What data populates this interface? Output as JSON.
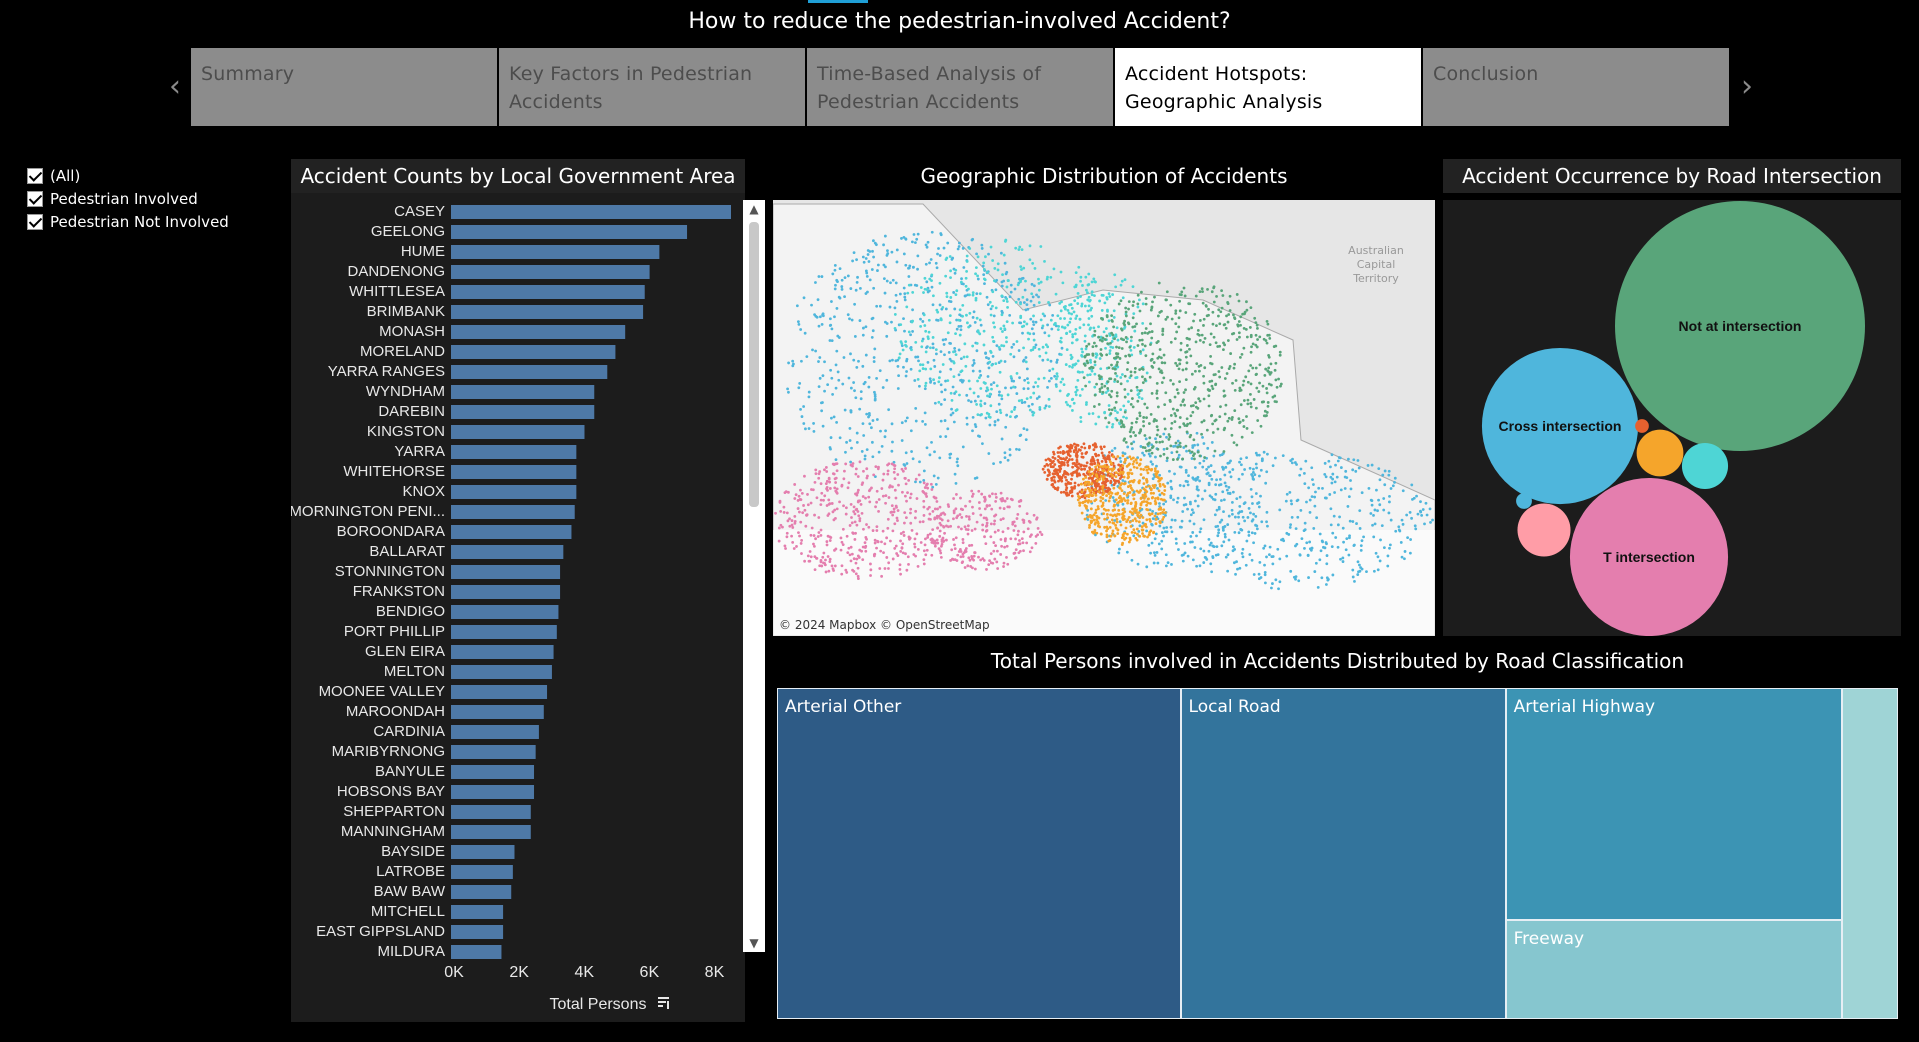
{
  "story": {
    "title": "How to reduce the pedestrian-involved Accident?",
    "tabs": [
      {
        "line1": "Summary",
        "line2": ""
      },
      {
        "line1": "Key Factors in Pedestrian",
        "line2": "Accidents"
      },
      {
        "line1": "Time-Based Analysis of",
        "line2": "Pedestrian Accidents"
      },
      {
        "line1": "Accident Hotspots:",
        "line2": "Geographic Analysis"
      },
      {
        "line1": "Conclusion",
        "line2": ""
      }
    ],
    "active_tab": 3,
    "prev_icon": "chevron-left-icon",
    "next_icon": "chevron-right-icon"
  },
  "filter": {
    "items": [
      {
        "label": "(All)",
        "checked": true
      },
      {
        "label": "Pedestrian Involved",
        "checked": true
      },
      {
        "label": "Pedestrian Not Involved",
        "checked": true
      }
    ]
  },
  "colors": {
    "bar": "#4e79a7",
    "panel_bg": "#1c1c1c",
    "region1": "#4fb6dc",
    "region2": "#59a57a",
    "region3": "#4ed5d5",
    "region4": "#e47eae",
    "region5": "#e6612f",
    "region6": "#f5a52b"
  },
  "map": {
    "title": "Geographic Distribution of Accidents",
    "credit": "© 2024 Mapbox © OpenStreetMap",
    "place_label": "Australian Capital Territory"
  },
  "chart_data": [
    {
      "type": "bar",
      "orientation": "horizontal",
      "title": "Accident Counts by Local Government Area",
      "xlabel": "Total Persons",
      "xlim": [
        0,
        8600
      ],
      "xticks": [
        "0K",
        "2K",
        "4K",
        "6K",
        "8K"
      ],
      "xtick_values": [
        0,
        2000,
        4000,
        6000,
        8000
      ],
      "categories": [
        "CASEY",
        "GEELONG",
        "HUME",
        "DANDENONG",
        "WHITTLESEA",
        "BRIMBANK",
        "MONASH",
        "MORELAND",
        "YARRA RANGES",
        "WYNDHAM",
        "DAREBIN",
        "KINGSTON",
        "YARRA",
        "WHITEHORSE",
        "KNOX",
        "MORNINGTON PENI...",
        "BOROONDARA",
        "BALLARAT",
        "STONNINGTON",
        "FRANKSTON",
        "BENDIGO",
        "PORT PHILLIP",
        "GLEN EIRA",
        "MELTON",
        "MOONEE VALLEY",
        "MAROONDAH",
        "CARDINIA",
        "MARIBYRNONG",
        "BANYULE",
        "HOBSONS BAY",
        "SHEPPARTON",
        "MANNINGHAM",
        "BAYSIDE",
        "LATROBE",
        "BAW BAW",
        "MITCHELL",
        "EAST GIPPSLAND",
        "MILDURA"
      ],
      "values": [
        8600,
        7250,
        6400,
        6100,
        5950,
        5900,
        5350,
        5050,
        4800,
        4400,
        4400,
        4100,
        3850,
        3850,
        3850,
        3800,
        3700,
        3450,
        3350,
        3350,
        3300,
        3250,
        3150,
        3100,
        2950,
        2850,
        2700,
        2600,
        2550,
        2550,
        2450,
        2450,
        1950,
        1900,
        1850,
        1600,
        1600,
        1550
      ]
    },
    {
      "type": "bubble",
      "title": "Accident Occurrence by Road Intersection Type",
      "bubbles": [
        {
          "label": "Not at intersection",
          "value": 100,
          "color": "#59a57a"
        },
        {
          "label": "Cross intersection",
          "value": 39,
          "color": "#4fb6dc"
        },
        {
          "label": "T intersection",
          "value": 40,
          "color": "#e47eae"
        },
        {
          "label": "",
          "value": 3.5,
          "color": "#f5a52b"
        },
        {
          "label": "",
          "value": 3.4,
          "color": "#4ed5d5"
        },
        {
          "label": "",
          "value": 4.5,
          "color": "#ff9da7"
        },
        {
          "label": "",
          "value": 0.3,
          "color": "#e6612f"
        },
        {
          "label": "",
          "value": 0.4,
          "color": "#4fb6dc"
        }
      ]
    },
    {
      "type": "treemap",
      "title": "Total Persons involved in Accidents Distributed by Road Classification",
      "items": [
        {
          "label": "Arterial Other",
          "value": 36,
          "color": "#2e5b86"
        },
        {
          "label": "Local Road",
          "value": 29,
          "color": "#33749c"
        },
        {
          "label": "Arterial Highway",
          "value": 21,
          "color": "#3c94b4"
        },
        {
          "label": "Freeway",
          "value": 9,
          "color": "#86c6cf"
        },
        {
          "label": "",
          "value": 5,
          "color": "#9fd4d6"
        }
      ]
    }
  ]
}
